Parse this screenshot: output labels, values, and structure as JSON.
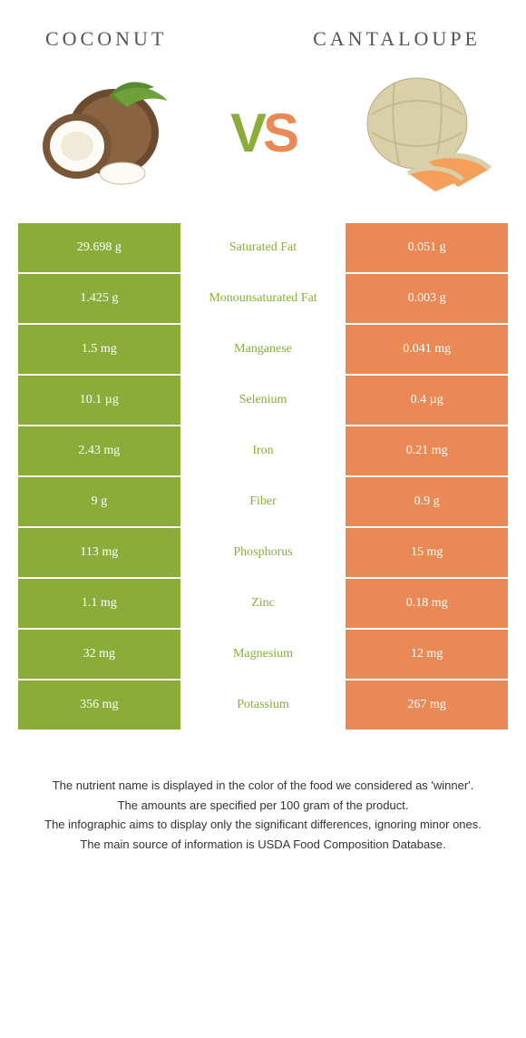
{
  "colors": {
    "left_food": "#8aad3a",
    "right_food": "#e98a56",
    "vs_v": "#8aad3a",
    "vs_s": "#e98a56"
  },
  "header": {
    "left_title": "Coconut",
    "right_title": "Cantaloupe"
  },
  "vs": {
    "v": "V",
    "s": "S"
  },
  "rows": [
    {
      "left": "29.698 g",
      "label": "Saturated Fat",
      "right": "0.051 g",
      "winner": "left"
    },
    {
      "left": "1.425 g",
      "label": "Monounsaturated Fat",
      "right": "0.003 g",
      "winner": "left"
    },
    {
      "left": "1.5 mg",
      "label": "Manganese",
      "right": "0.041 mg",
      "winner": "left"
    },
    {
      "left": "10.1 µg",
      "label": "Selenium",
      "right": "0.4 µg",
      "winner": "left"
    },
    {
      "left": "2.43 mg",
      "label": "Iron",
      "right": "0.21 mg",
      "winner": "left"
    },
    {
      "left": "9 g",
      "label": "Fiber",
      "right": "0.9 g",
      "winner": "left"
    },
    {
      "left": "113 mg",
      "label": "Phosphorus",
      "right": "15 mg",
      "winner": "left"
    },
    {
      "left": "1.1 mg",
      "label": "Zinc",
      "right": "0.18 mg",
      "winner": "left"
    },
    {
      "left": "32 mg",
      "label": "Magnesium",
      "right": "12 mg",
      "winner": "left"
    },
    {
      "left": "356 mg",
      "label": "Potassium",
      "right": "267 mg",
      "winner": "left"
    }
  ],
  "footer": {
    "line1": "The nutrient name is displayed in the color of the food we considered as 'winner'.",
    "line2": "The amounts are specified per 100 gram of the product.",
    "line3": "The infographic aims to display only the significant differences, ignoring minor ones.",
    "line4": "The main source of information is USDA Food Composition Database."
  }
}
